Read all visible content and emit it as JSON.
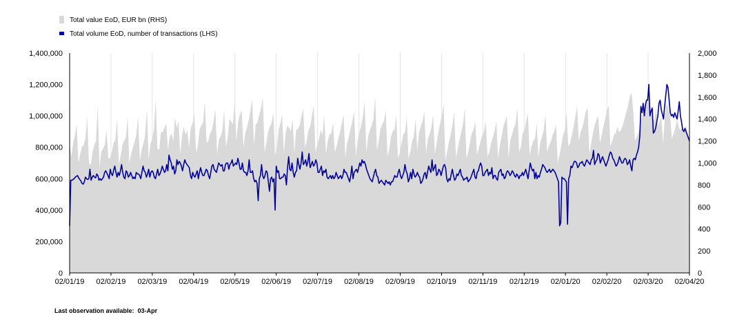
{
  "chart_data": {
    "type": "area+line",
    "series": [
      {
        "name": "Total value EoD, EUR bn (RHS)",
        "axis": "right",
        "kind": "area",
        "color": "#d9d9d9",
        "values": [
          1160,
          1060,
          1180,
          1250,
          1350,
          1000,
          1080,
          1150,
          1160,
          1230,
          1420,
          1000,
          980,
          1100,
          1160,
          1200,
          1520,
          960,
          1100,
          1130,
          1160,
          1300,
          1050,
          1040,
          1100,
          1180,
          1210,
          1400,
          990,
          1060,
          1160,
          1200,
          1230,
          1420,
          1000,
          1080,
          1140,
          1190,
          1260,
          1420,
          1020,
          1120,
          1180,
          1250,
          1490,
          1030,
          1170,
          1220,
          1310,
          1580,
          1130,
          1120,
          1280,
          1280,
          1320,
          1360,
          1120,
          1240,
          1270,
          1200,
          1410,
          1320,
          1380,
          1080,
          1250,
          1330,
          1260,
          1300,
          1140,
          1320,
          1360,
          1450,
          1100,
          1150,
          1300,
          1340,
          1370,
          1560,
          1180,
          1200,
          1270,
          1300,
          1380,
          1490,
          1080,
          1210,
          1240,
          1300,
          1480,
          1150,
          1230,
          1400,
          1380,
          1350,
          1560,
          1200,
          1380,
          1440,
          1480,
          1140,
          1270,
          1320,
          1390,
          1480,
          1580,
          1160,
          1350,
          1370,
          1440,
          1500,
          1600,
          1100,
          1180,
          1280,
          1330,
          1360,
          1460,
          1070,
          1140,
          1300,
          1360,
          1440,
          1090,
          1270,
          1340,
          1320,
          1290,
          1400,
          1090,
          1300,
          1310,
          1340,
          1420,
          1500,
          1140,
          1200,
          1300,
          1330,
          1430,
          1520,
          1100,
          1160,
          1220,
          1300,
          1250,
          1440,
          1080,
          1200,
          1260,
          1270,
          1360,
          1100,
          1150,
          1220,
          1280,
          1360,
          1440,
          1050,
          1180,
          1240,
          1310,
          1380,
          1470,
          1060,
          1200,
          1280,
          1340,
          1420,
          1560,
          1100,
          1240,
          1300,
          1340,
          1400,
          1600,
          1120,
          1200,
          1310,
          1350,
          1380,
          1480,
          1060,
          1120,
          1240,
          1290,
          1300,
          1440,
          1040,
          1090,
          1180,
          1260,
          1280,
          1420,
          1040,
          1100,
          1200,
          1240,
          1400,
          1110,
          1280,
          1330,
          1380,
          1470,
          1090,
          1220,
          1260,
          1320,
          1440,
          1080,
          1180,
          1280,
          1360,
          1430,
          1540,
          1020,
          1100,
          1190,
          1260,
          1340,
          1460,
          1050,
          1130,
          1210,
          1280,
          1350,
          1500,
          1040,
          1100,
          1190,
          1270,
          1300,
          1380,
          1080,
          1130,
          1200,
          1250,
          1290,
          1380,
          1060,
          1100,
          1180,
          1230,
          1290,
          1380,
          1040,
          1160,
          1240,
          1330,
          1380,
          1430,
          1050,
          1210,
          1260,
          1320,
          1360,
          1500,
          1100,
          1150,
          1270,
          1300,
          1380,
          1450,
          1070,
          1150,
          1200,
          1220,
          1360,
          1050,
          1180,
          1240,
          1300,
          1440,
          1100,
          1160,
          1190,
          1250,
          1290,
          1350,
          1000,
          1070,
          1160,
          1250,
          1300,
          1460,
          1150,
          1180,
          1250,
          1330,
          1420,
          1510,
          1200,
          1280,
          1320,
          1390,
          1470,
          1500,
          1080,
          1180,
          1270,
          1340,
          1390,
          1430,
          1180,
          1260,
          1330,
          1400,
          1480,
          1520,
          1150,
          1200,
          1260,
          1270,
          1330,
          1280,
          1300,
          1340,
          1400,
          1460,
          1520,
          1600,
          1640,
          1470,
          1200,
          1240,
          1280,
          1360,
          1420,
          1500,
          1560,
          1610,
          1640,
          1470,
          1420,
          1380,
          1500,
          1340,
          1380,
          1420,
          1180,
          1420,
          1550,
          1500,
          1420,
          1220,
          1270,
          1320,
          1400,
          1320,
          1300,
          1330,
          1300,
          1340,
          1260,
          1220
        ]
      },
      {
        "name": "Total volume EoD, number of transactions (LHS)",
        "axis": "left",
        "kind": "line",
        "color": "#000099",
        "values": [
          300000,
          590000,
          590000,
          595000,
          600000,
          610000,
          615000,
          620000,
          605000,
          595000,
          585000,
          570000,
          565000,
          580000,
          610000,
          600000,
          595000,
          600000,
          660000,
          590000,
          610000,
          620000,
          610000,
          605000,
          630000,
          620000,
          590000,
          600000,
          590000,
          600000,
          610000,
          640000,
          650000,
          635000,
          620000,
          600000,
          660000,
          630000,
          620000,
          655000,
          680000,
          640000,
          610000,
          640000,
          620000,
          650000,
          690000,
          640000,
          610000,
          600000,
          650000,
          640000,
          610000,
          620000,
          640000,
          620000,
          600000,
          610000,
          600000,
          640000,
          630000,
          630000,
          620000,
          600000,
          640000,
          680000,
          650000,
          640000,
          610000,
          630000,
          660000,
          610000,
          640000,
          650000,
          640000,
          610000,
          600000,
          630000,
          660000,
          620000,
          630000,
          650000,
          680000,
          660000,
          640000,
          650000,
          690000,
          650000,
          750000,
          720000,
          700000,
          660000,
          680000,
          630000,
          650000,
          720000,
          690000,
          710000,
          700000,
          680000,
          650000,
          690000,
          720000,
          700000,
          690000,
          680000,
          670000,
          620000,
          600000,
          640000,
          620000,
          610000,
          630000,
          650000,
          600000,
          640000,
          670000,
          640000,
          620000,
          620000,
          640000,
          660000,
          650000,
          620000,
          600000,
          640000,
          680000,
          690000,
          660000,
          650000,
          640000,
          670000,
          700000,
          690000,
          680000,
          690000,
          650000,
          650000,
          690000,
          700000,
          700000,
          660000,
          690000,
          700000,
          720000,
          680000,
          690000,
          700000,
          690000,
          730000,
          700000,
          660000,
          660000,
          700000,
          650000,
          640000,
          640000,
          620000,
          650000,
          720000,
          640000,
          640000,
          650000,
          600000,
          580000,
          590000,
          570000,
          460000,
          600000,
          620000,
          690000,
          620000,
          600000,
          620000,
          650000,
          640000,
          580000,
          520000,
          600000,
          610000,
          580000,
          600000,
          400000,
          680000,
          640000,
          650000,
          600000,
          600000,
          610000,
          610000,
          630000,
          620000,
          560000,
          670000,
          740000,
          660000,
          650000,
          700000,
          640000,
          610000,
          640000,
          650000,
          730000,
          690000,
          660000,
          700000,
          770000,
          690000,
          700000,
          720000,
          680000,
          710000,
          760000,
          670000,
          690000,
          710000,
          680000,
          690000,
          720000,
          700000,
          640000,
          640000,
          660000,
          680000,
          620000,
          650000,
          640000,
          660000,
          610000,
          600000,
          610000,
          620000,
          600000,
          620000,
          600000,
          610000,
          640000,
          620000,
          600000,
          610000,
          620000,
          600000,
          620000,
          660000,
          640000,
          640000,
          620000,
          600000,
          580000,
          620000,
          680000,
          600000,
          640000,
          650000,
          660000,
          640000,
          670000,
          700000,
          680000,
          720000,
          700000,
          710000,
          690000,
          660000,
          640000,
          620000,
          600000,
          590000,
          580000,
          610000,
          640000,
          660000,
          620000,
          610000,
          570000,
          580000,
          590000,
          580000,
          570000,
          560000,
          590000,
          580000,
          570000,
          580000,
          560000,
          580000,
          580000,
          600000,
          620000,
          610000,
          610000,
          640000,
          660000,
          620000,
          600000,
          620000,
          640000,
          690000,
          650000,
          630000,
          580000,
          600000,
          640000,
          600000,
          660000,
          630000,
          610000,
          620000,
          640000,
          620000,
          610000,
          570000,
          580000,
          600000,
          630000,
          640000,
          600000,
          640000,
          680000,
          660000,
          640000,
          720000,
          650000,
          670000,
          690000,
          620000,
          630000,
          660000,
          650000,
          620000,
          650000,
          680000,
          690000,
          670000,
          600000,
          580000,
          600000,
          590000,
          630000,
          660000,
          620000,
          590000,
          600000,
          630000,
          620000,
          640000,
          660000,
          620000,
          610000,
          590000,
          600000,
          600000,
          610000,
          580000,
          590000,
          600000,
          620000,
          640000,
          660000,
          610000,
          600000,
          640000,
          650000,
          680000,
          700000,
          680000,
          620000,
          620000,
          640000,
          650000,
          660000,
          620000,
          640000,
          630000,
          670000,
          600000,
          620000,
          620000,
          600000,
          590000,
          640000,
          650000,
          660000,
          620000,
          630000,
          600000,
          610000,
          640000,
          650000,
          640000,
          620000,
          630000,
          650000,
          640000,
          620000,
          610000,
          630000,
          620000,
          600000,
          620000,
          620000,
          640000,
          620000,
          640000,
          660000,
          630000,
          600000,
          650000,
          700000,
          670000,
          650000,
          660000,
          600000,
          640000,
          600000,
          620000,
          610000,
          640000,
          660000,
          690000,
          680000,
          670000,
          650000,
          640000,
          650000,
          660000,
          640000,
          650000,
          660000,
          650000,
          640000,
          620000,
          600000,
          580000,
          300000,
          320000,
          610000,
          600000,
          600000,
          590000,
          580000,
          310000,
          600000,
          620000,
          680000,
          670000,
          690000,
          710000,
          710000,
          700000,
          670000,
          680000,
          700000,
          700000,
          710000,
          690000,
          680000,
          700000,
          720000,
          710000,
          700000,
          690000,
          720000,
          730000,
          780000,
          690000,
          710000,
          720000,
          760000,
          750000,
          700000,
          720000,
          740000,
          720000,
          700000,
          680000,
          700000,
          720000,
          750000,
          770000,
          760000,
          730000,
          720000,
          700000,
          680000,
          690000,
          710000,
          740000,
          720000,
          700000,
          700000,
          720000,
          730000,
          720000,
          690000,
          700000,
          720000,
          680000,
          650000,
          720000,
          730000,
          720000,
          750000,
          770000,
          800000,
          870000,
          1060000,
          1020000,
          1080000,
          1000000,
          1070000,
          1100000,
          1100000,
          1200000,
          1000000,
          1030000,
          1050000,
          890000,
          900000,
          920000,
          960000,
          1000000,
          1080000,
          1100000,
          1040000,
          1010000,
          980000,
          1060000,
          1130000,
          1200000,
          1180000,
          1100000,
          1020000,
          1000000,
          1010000,
          990000,
          1020000,
          1000000,
          980000,
          1030000,
          1090000,
          1000000,
          960000,
          910000,
          900000,
          920000,
          900000,
          880000,
          860000,
          840000
        ]
      }
    ],
    "x_tick_labels": [
      "02/01/19",
      "02/02/19",
      "02/03/19",
      "02/04/19",
      "02/05/19",
      "02/06/19",
      "02/07/19",
      "02/08/19",
      "02/09/19",
      "02/10/19",
      "02/11/19",
      "02/12/19",
      "02/01/20",
      "02/02/20",
      "02/03/20",
      "02/04/20"
    ],
    "y_left_ticks": [
      "0",
      "200,000",
      "400,000",
      "600,000",
      "800,000",
      "1,000,000",
      "1,200,000",
      "1,400,000"
    ],
    "y_left_range": [
      0,
      1400000
    ],
    "y_right_ticks": [
      "0",
      "200",
      "400",
      "600",
      "800",
      "1,000",
      "1,200",
      "1,400",
      "1,600",
      "1,800",
      "2,000"
    ],
    "y_right_range": [
      0,
      2000
    ],
    "grid": "vertical",
    "legend_placement": "top-left"
  },
  "note": {
    "label": "Last observation available:",
    "value": "03-Apr"
  }
}
